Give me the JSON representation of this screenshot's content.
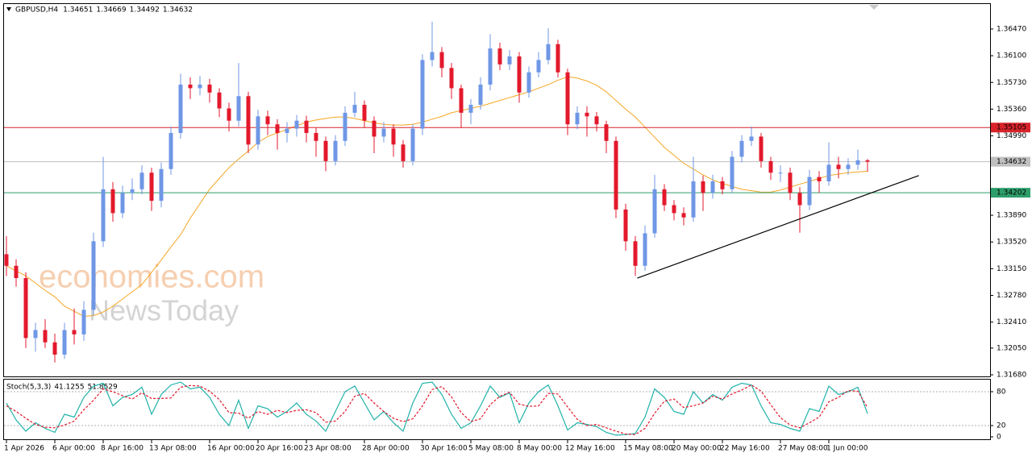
{
  "chart_data": [
    {
      "type": "candlestick",
      "header": {
        "symbol": "GBPUSD,H4",
        "ohlc": [
          1.34651,
          1.34669,
          1.34492,
          1.34632
        ]
      },
      "watermark": [
        "economies.com",
        "NewsToday"
      ],
      "categories": [
        "1 Apr 2026",
        null,
        null,
        null,
        null,
        "6 Apr 00:00",
        null,
        null,
        null,
        null,
        "8 Apr 16:00",
        null,
        null,
        null,
        null,
        "13 Apr 08:00",
        null,
        null,
        null,
        null,
        null,
        "16 Apr 00:00",
        null,
        null,
        null,
        null,
        "20 Apr 16:00",
        null,
        null,
        null,
        null,
        "23 Apr 08:00",
        null,
        null,
        null,
        null,
        null,
        "28 Apr 00:00",
        null,
        null,
        null,
        null,
        null,
        "30 Apr 16:00",
        null,
        null,
        null,
        null,
        "5 May 08:00",
        null,
        null,
        null,
        null,
        "8 May 00:00",
        null,
        null,
        null,
        null,
        "12 May 16:00",
        null,
        null,
        null,
        null,
        null,
        "15 May 08:00",
        null,
        null,
        null,
        null,
        "20 May 00:00",
        null,
        null,
        null,
        null,
        "22 May 16:00",
        null,
        null,
        null,
        null,
        null,
        "27 May 08:00",
        null,
        null,
        null,
        null,
        "1 Jun 00:00",
        null,
        null,
        null,
        null
      ],
      "open": [
        1.3335,
        1.3319,
        1.3302,
        1.3219,
        1.323,
        1.3213,
        1.3196,
        1.323,
        1.3224,
        1.3258,
        1.3353,
        1.3425,
        1.3392,
        1.342,
        1.3425,
        1.3448,
        1.3409,
        1.3453,
        1.3503,
        1.357,
        1.3565,
        1.357,
        1.3559,
        1.3537,
        1.352,
        1.3554,
        1.3487,
        1.3526,
        1.3515,
        1.3503,
        1.3509,
        1.352,
        1.3503,
        1.3492,
        1.3464,
        1.3492,
        1.3531,
        1.3542,
        1.352,
        1.3498,
        1.3509,
        1.3487,
        1.3464,
        1.3509,
        1.3604,
        1.3615,
        1.3593,
        1.3565,
        1.3531,
        1.3542,
        1.357,
        1.362,
        1.3598,
        1.3609,
        1.3559,
        1.3587,
        1.3604,
        1.3626,
        1.3587,
        1.3515,
        1.3531,
        1.3526,
        1.3515,
        1.3492,
        1.3397,
        1.3353,
        1.3319,
        1.3364,
        1.3425,
        1.3403,
        1.3392,
        1.3386,
        1.3436,
        1.342,
        1.3436,
        1.3425,
        1.347,
        1.3492,
        1.3498,
        1.3464,
        1.3448,
        1.3448,
        1.342,
        1.3403,
        1.3442,
        1.3436,
        1.3459,
        1.3453,
        1.3459,
        1.34651
      ],
      "high": [
        1.336,
        1.3328,
        1.331,
        1.324,
        1.3245,
        1.3225,
        1.324,
        1.326,
        1.327,
        1.3365,
        1.347,
        1.3435,
        1.343,
        1.344,
        1.3458,
        1.3455,
        1.3462,
        1.3512,
        1.3585,
        1.358,
        1.3582,
        1.3578,
        1.3565,
        1.3545,
        1.36,
        1.356,
        1.3535,
        1.3534,
        1.3522,
        1.3518,
        1.3528,
        1.3527,
        1.351,
        1.3498,
        1.35,
        1.354,
        1.356,
        1.3548,
        1.3526,
        1.3518,
        1.3515,
        1.3493,
        1.3515,
        1.3612,
        1.3657,
        1.3622,
        1.36,
        1.357,
        1.355,
        1.358,
        1.364,
        1.3628,
        1.3618,
        1.3615,
        1.3595,
        1.3615,
        1.3648,
        1.3632,
        1.3592,
        1.354,
        1.354,
        1.3532,
        1.352,
        1.3498,
        1.3405,
        1.336,
        1.3375,
        1.3445,
        1.3432,
        1.341,
        1.34,
        1.347,
        1.3444,
        1.3445,
        1.3442,
        1.3478,
        1.35,
        1.3512,
        1.3503,
        1.347,
        1.3458,
        1.3455,
        1.3428,
        1.3452,
        1.345,
        1.349,
        1.347,
        1.3468,
        1.348,
        1.34669
      ],
      "low": [
        1.3305,
        1.329,
        1.3205,
        1.32,
        1.3205,
        1.3185,
        1.319,
        1.321,
        1.3215,
        1.325,
        1.3345,
        1.338,
        1.3385,
        1.341,
        1.3418,
        1.3395,
        1.34,
        1.3445,
        1.3495,
        1.355,
        1.3555,
        1.3545,
        1.3525,
        1.3505,
        1.3512,
        1.3475,
        1.348,
        1.35,
        1.348,
        1.349,
        1.3498,
        1.349,
        1.347,
        1.345,
        1.3458,
        1.3485,
        1.3525,
        1.351,
        1.3475,
        1.349,
        1.347,
        1.3455,
        1.3458,
        1.35,
        1.3595,
        1.358,
        1.355,
        1.351,
        1.3515,
        1.3535,
        1.3562,
        1.359,
        1.359,
        1.3545,
        1.3552,
        1.358,
        1.3598,
        1.358,
        1.35,
        1.3508,
        1.3498,
        1.3505,
        1.3475,
        1.3385,
        1.334,
        1.3305,
        1.3312,
        1.3358,
        1.3395,
        1.3382,
        1.3375,
        1.338,
        1.3395,
        1.3412,
        1.3418,
        1.342,
        1.3462,
        1.3485,
        1.3455,
        1.3438,
        1.3435,
        1.341,
        1.3365,
        1.3396,
        1.342,
        1.343,
        1.344,
        1.3445,
        1.3452,
        1.34492
      ],
      "close": [
        1.3319,
        1.3302,
        1.3219,
        1.323,
        1.3213,
        1.3196,
        1.323,
        1.3224,
        1.3258,
        1.3353,
        1.3425,
        1.3392,
        1.342,
        1.3425,
        1.3448,
        1.3409,
        1.3453,
        1.3503,
        1.357,
        1.3565,
        1.357,
        1.3559,
        1.3537,
        1.352,
        1.3554,
        1.3487,
        1.3526,
        1.3515,
        1.3503,
        1.3509,
        1.352,
        1.3503,
        1.3492,
        1.3464,
        1.3492,
        1.3531,
        1.3542,
        1.352,
        1.3498,
        1.3509,
        1.3487,
        1.3464,
        1.3509,
        1.3604,
        1.3615,
        1.3593,
        1.3565,
        1.3531,
        1.3542,
        1.357,
        1.362,
        1.3598,
        1.3609,
        1.3559,
        1.3587,
        1.3604,
        1.3626,
        1.3587,
        1.3515,
        1.3531,
        1.3526,
        1.3515,
        1.3492,
        1.3397,
        1.3353,
        1.3319,
        1.3364,
        1.3425,
        1.3403,
        1.3392,
        1.3386,
        1.3436,
        1.342,
        1.3436,
        1.3425,
        1.347,
        1.3492,
        1.3498,
        1.3464,
        1.3448,
        1.3448,
        1.342,
        1.3403,
        1.3442,
        1.3436,
        1.3459,
        1.3453,
        1.3459,
        1.34651,
        1.34632
      ],
      "up_color": "#6f97e6",
      "down_color": "#e3192c",
      "ma": {
        "color": "#f5a623",
        "values": [
          1.3319,
          1.3312,
          1.3305,
          1.3295,
          1.3285,
          1.3276,
          1.3263,
          1.3256,
          1.3249,
          1.325,
          1.3255,
          1.3263,
          1.3273,
          1.3283,
          1.3293,
          1.331,
          1.3327,
          1.3345,
          1.3362,
          1.3385,
          1.3405,
          1.3425,
          1.344,
          1.3455,
          1.3467,
          1.3478,
          1.349,
          1.3498,
          1.3503,
          1.3508,
          1.3513,
          1.3518,
          1.3521,
          1.3523,
          1.3525,
          1.3525,
          1.3523,
          1.352,
          1.3517,
          1.3515,
          1.3514,
          1.3514,
          1.3515,
          1.3518,
          1.3522,
          1.3526,
          1.3531,
          1.3534,
          1.3537,
          1.354,
          1.3544,
          1.3548,
          1.3552,
          1.3556,
          1.356,
          1.3565,
          1.357,
          1.3576,
          1.3581,
          1.3579,
          1.3575,
          1.3569,
          1.356,
          1.3548,
          1.3536,
          1.3525,
          1.3511,
          1.3497,
          1.3483,
          1.3472,
          1.3461,
          1.3453,
          1.3445,
          1.3438,
          1.3433,
          1.3429,
          1.3425,
          1.3423,
          1.3421,
          1.3421,
          1.3424,
          1.3428,
          1.3432,
          1.3436,
          1.344,
          1.3444,
          1.3446,
          1.3448,
          1.3449,
          1.345
        ]
      },
      "levels": [
        {
          "value": 1.35105,
          "color": "#d8232a",
          "text_color": "#ffffff"
        },
        {
          "value": 1.34632,
          "color": "#c0c0c0",
          "text_color": "#000000"
        },
        {
          "value": 1.34202,
          "color": "#2e9e6b",
          "text_color": "#ffffff"
        }
      ],
      "trendline": {
        "x": [
          65.2,
          94.3
        ],
        "y": [
          1.3302,
          1.3444
        ],
        "color": "#000000"
      },
      "ylim": [
        1.31658,
        1.36827
      ],
      "yticks": [
        {
          "value": 1.3647,
          "label": "1.36470"
        },
        {
          "value": 1.361,
          "label": "1.36100"
        },
        {
          "value": 1.3573,
          "label": "1.35730"
        },
        {
          "value": 1.3536,
          "label": "1.35360"
        },
        {
          "value": 1.3499,
          "label": "1.34990"
        },
        {
          "value": 1.3389,
          "label": "1.33890"
        },
        {
          "value": 1.3352,
          "label": "1.33520"
        },
        {
          "value": 1.3315,
          "label": "1.33150"
        },
        {
          "value": 1.3278,
          "label": "1.32780"
        },
        {
          "value": 1.3241,
          "label": "1.32410"
        },
        {
          "value": 1.3205,
          "label": "1.32050"
        },
        {
          "value": 1.3168,
          "label": "1.31680"
        }
      ]
    },
    {
      "type": "stochastic",
      "label": "Stoch(5,3,3)",
      "readout": [
        41.1255,
        51.8529
      ],
      "series": [
        {
          "color": "#20b2aa",
          "dashed": false,
          "values": [
            60,
            30,
            10,
            25,
            15,
            8,
            40,
            35,
            70,
            90,
            95,
            55,
            70,
            75,
            88,
            40,
            75,
            92,
            97,
            85,
            88,
            70,
            40,
            20,
            65,
            15,
            55,
            50,
            35,
            45,
            60,
            40,
            28,
            10,
            45,
            80,
            90,
            60,
            30,
            45,
            25,
            10,
            60,
            95,
            97,
            75,
            40,
            15,
            25,
            55,
            90,
            70,
            78,
            25,
            60,
            80,
            92,
            55,
            12,
            25,
            22,
            18,
            8,
            3,
            4,
            6,
            35,
            85,
            70,
            45,
            40,
            80,
            60,
            75,
            65,
            88,
            95,
            92,
            55,
            25,
            22,
            15,
            10,
            50,
            45,
            90,
            75,
            80,
            88,
            41.1255
          ]
        },
        {
          "color": "#e3192c",
          "dashed": true,
          "values": [
            55,
            45,
            33,
            22,
            17,
            16,
            21,
            28,
            48,
            65,
            85,
            80,
            73,
            67,
            78,
            68,
            68,
            69,
            88,
            91,
            90,
            81,
            66,
            43,
            42,
            33,
            45,
            40,
            47,
            43,
            47,
            48,
            43,
            26,
            28,
            45,
            72,
            77,
            60,
            45,
            33,
            27,
            32,
            55,
            84,
            89,
            71,
            43,
            27,
            32,
            57,
            72,
            79,
            58,
            54,
            55,
            77,
            76,
            53,
            31,
            20,
            22,
            16,
            10,
            5,
            4,
            15,
            42,
            63,
            67,
            52,
            55,
            60,
            72,
            67,
            76,
            83,
            92,
            81,
            57,
            34,
            21,
            16,
            25,
            35,
            62,
            70,
            82,
            81,
            51.8529
          ]
        }
      ],
      "levels": [
        80,
        20
      ],
      "ylim": [
        0,
        100
      ],
      "yticks": [
        80,
        20,
        0
      ]
    }
  ]
}
